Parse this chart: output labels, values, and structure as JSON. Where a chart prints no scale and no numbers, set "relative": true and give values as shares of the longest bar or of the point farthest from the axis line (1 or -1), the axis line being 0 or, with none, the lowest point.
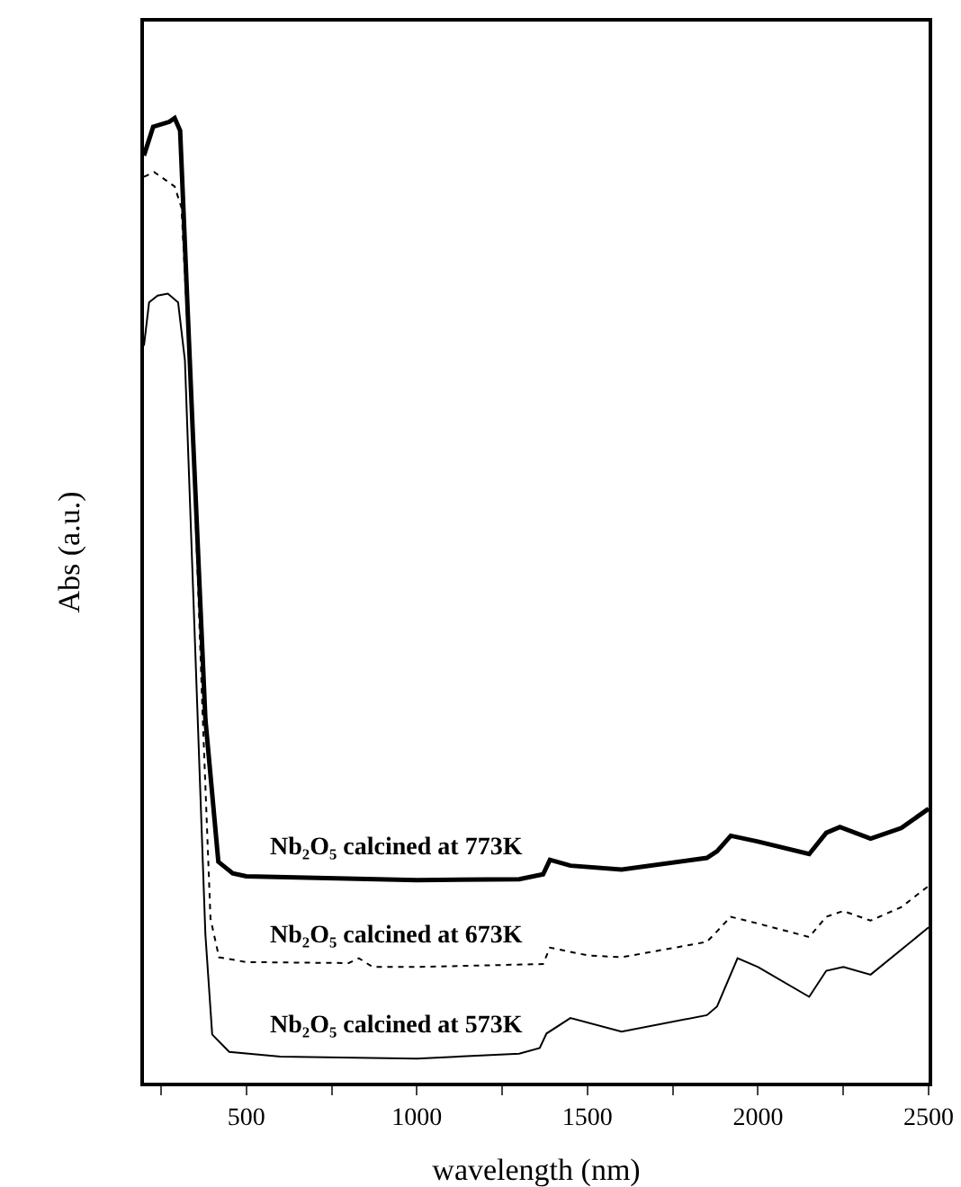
{
  "chart_data": {
    "type": "line",
    "xlabel": "wavelength (nm)",
    "ylabel": "Abs (a.u.)",
    "relative": true,
    "xlim": [
      200,
      2500
    ],
    "xticks": [
      {
        "value": 250,
        "label": null
      },
      500,
      {
        "value": 750,
        "label": null
      },
      1000,
      {
        "value": 1250,
        "label": null
      },
      1500,
      {
        "value": 1750,
        "label": null
      },
      2000,
      {
        "value": 2250,
        "label": null
      },
      2500
    ],
    "grid": false,
    "legend": false,
    "marker": "none",
    "series": [
      {
        "name": "Nb₂O₅ calcined at 773K",
        "color": "#000000",
        "line_style": "solid",
        "x": [
          200,
          227,
          274,
          290,
          306,
          343,
          380,
          418,
          460,
          500,
          1000,
          1300,
          1370,
          1390,
          1450,
          1600,
          1850,
          1880,
          1920,
          2000,
          2150,
          2200,
          2240,
          2330,
          2420,
          2500
        ],
        "values": [
          0.961,
          0.991,
          0.996,
          1.0,
          0.987,
          0.675,
          0.377,
          0.229,
          0.217,
          0.214,
          0.21,
          0.211,
          0.216,
          0.231,
          0.225,
          0.221,
          0.233,
          0.24,
          0.256,
          0.25,
          0.237,
          0.259,
          0.265,
          0.253,
          0.264,
          0.284
        ]
      },
      {
        "name": "Nb₂O₅ calcined at 673K",
        "color": "#000000",
        "line_style": "dotted",
        "x": [
          200,
          230,
          290,
          310,
          340,
          370,
          395,
          420,
          500,
          800,
          830,
          870,
          1000,
          1370,
          1390,
          1500,
          1600,
          1850,
          1880,
          1920,
          2000,
          2150,
          2200,
          2250,
          2330,
          2420,
          2500
        ],
        "values": [
          0.939,
          0.944,
          0.929,
          0.907,
          0.7,
          0.4,
          0.17,
          0.13,
          0.125,
          0.124,
          0.129,
          0.12,
          0.12,
          0.123,
          0.14,
          0.132,
          0.13,
          0.146,
          0.157,
          0.172,
          0.165,
          0.151,
          0.172,
          0.178,
          0.168,
          0.182,
          0.204
        ]
      },
      {
        "name": "Nb₂O₅ calcined at 573K",
        "color": "#000000",
        "line_style": "solid",
        "x": [
          200,
          215,
          240,
          270,
          300,
          320,
          350,
          380,
          400,
          450,
          600,
          1000,
          1300,
          1360,
          1380,
          1450,
          1600,
          1850,
          1880,
          1940,
          2000,
          2150,
          2200,
          2250,
          2330,
          2500
        ],
        "values": [
          0.764,
          0.809,
          0.816,
          0.818,
          0.809,
          0.749,
          0.452,
          0.154,
          0.05,
          0.032,
          0.027,
          0.025,
          0.03,
          0.036,
          0.051,
          0.067,
          0.053,
          0.07,
          0.079,
          0.129,
          0.12,
          0.089,
          0.116,
          0.12,
          0.112,
          0.161
        ]
      }
    ]
  }
}
